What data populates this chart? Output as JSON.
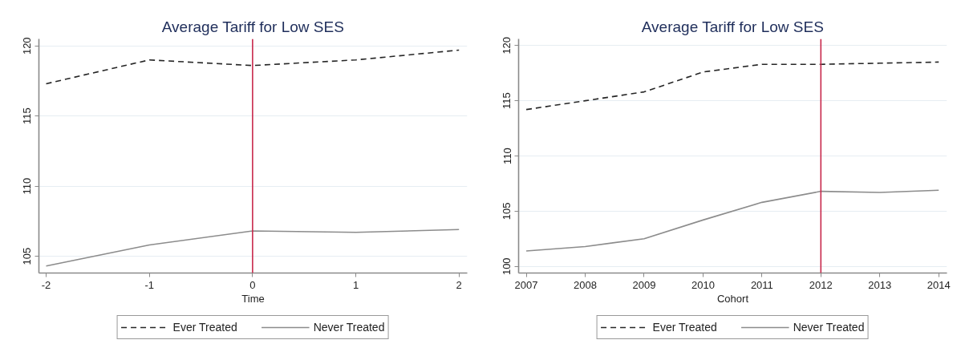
{
  "chart_data": [
    {
      "type": "line",
      "title": "Average Tariff for Low SES",
      "xlabel": "Time",
      "x": [
        -2,
        -1,
        0,
        1,
        2
      ],
      "xlim": [
        -2.07,
        2.08
      ],
      "xticks": [
        -2,
        -1,
        0,
        1,
        2
      ],
      "ylim": [
        103.8,
        120.5
      ],
      "yticks": [
        105,
        110,
        115,
        120
      ],
      "grid": "y",
      "legend": "bottom",
      "series": [
        {
          "name": "Ever Treated",
          "color": "#262626",
          "line_style": "dashed",
          "values": [
            117.3,
            119.0,
            118.6,
            119.0,
            119.7
          ]
        },
        {
          "name": "Never Treated",
          "color": "#8c8c8c",
          "line_style": "solid",
          "values": [
            104.3,
            105.8,
            106.8,
            106.7,
            106.9
          ]
        }
      ],
      "ref_lines": [
        {
          "axis": "x",
          "value": 0,
          "color": "#c8294c"
        }
      ]
    },
    {
      "type": "line",
      "title": "Average Tariff for Low SES",
      "xlabel": "Cohort",
      "x": [
        2007,
        2008,
        2009,
        2010,
        2011,
        2012,
        2013,
        2014
      ],
      "xlim": [
        2006.87,
        2014.14
      ],
      "xticks": [
        2007,
        2008,
        2009,
        2010,
        2011,
        2012,
        2013,
        2014
      ],
      "ylim": [
        99.4,
        120.6
      ],
      "yticks": [
        100,
        105,
        110,
        115,
        120
      ],
      "grid": "y",
      "legend": "bottom",
      "series": [
        {
          "name": "Ever Treated",
          "color": "#262626",
          "line_style": "dashed",
          "values": [
            114.2,
            115.0,
            115.8,
            117.6,
            118.3,
            118.3,
            118.4,
            118.5
          ]
        },
        {
          "name": "Never Treated",
          "color": "#8c8c8c",
          "line_style": "solid",
          "values": [
            101.4,
            101.8,
            102.5,
            104.2,
            105.8,
            106.8,
            106.7,
            106.9
          ]
        }
      ],
      "ref_lines": [
        {
          "axis": "x",
          "value": 2012,
          "color": "#c8294c"
        }
      ]
    }
  ]
}
